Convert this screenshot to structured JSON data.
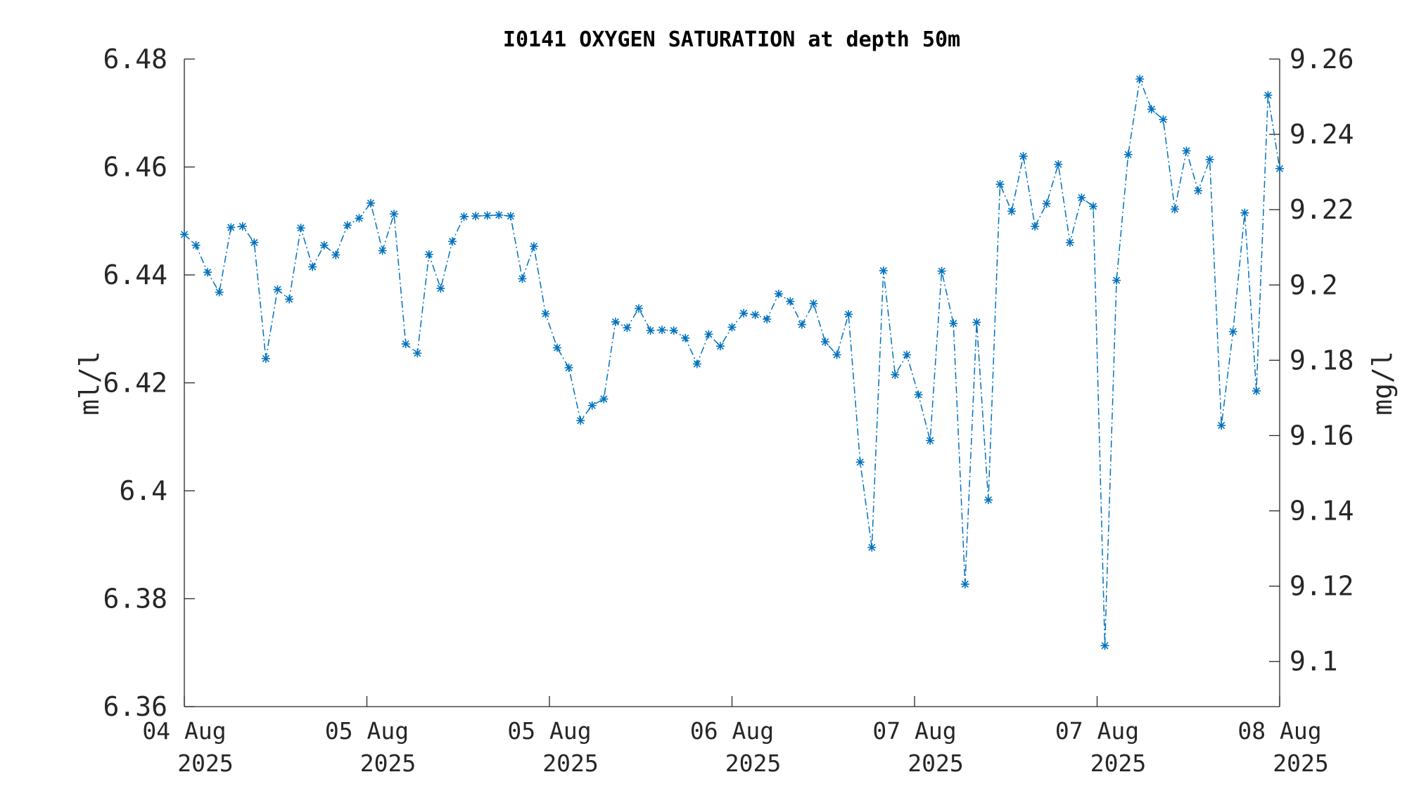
{
  "colors": {
    "series": "#0072BD",
    "axis": "#262626"
  },
  "chart_data": {
    "type": "line",
    "title": "I0141 OXYGEN SATURATION at depth 50m",
    "ylabel": "ml/l",
    "ylabel_right": "mg/l",
    "ylim": [
      6.36,
      6.48
    ],
    "ylim_right": [
      9.088,
      9.26
    ],
    "yticks": [
      "6.36",
      "6.38",
      "6.4",
      "6.42",
      "6.44",
      "6.46",
      "6.48"
    ],
    "yticks_right": [
      "9.1",
      "9.12",
      "9.14",
      "9.16",
      "9.18",
      "9.2",
      "9.22",
      "9.24",
      "9.26"
    ],
    "xticks": [
      {
        "line1": "04 Aug",
        "line2": "2025"
      },
      {
        "line1": "05 Aug",
        "line2": "2025"
      },
      {
        "line1": "05 Aug",
        "line2": "2025"
      },
      {
        "line1": "06 Aug",
        "line2": "2025"
      },
      {
        "line1": "07 Aug",
        "line2": "2025"
      },
      {
        "line1": "07 Aug",
        "line2": "2025"
      },
      {
        "line1": "08 Aug",
        "line2": "2025"
      }
    ],
    "marker": "asterisk",
    "line_style": "dash-dot",
    "grid": false,
    "series": [
      {
        "values": [
          6.4475,
          6.4455,
          6.4405,
          6.4368,
          6.4488,
          6.449,
          6.446,
          6.4245,
          6.4373,
          6.4355,
          6.4487,
          6.4415,
          6.4455,
          6.4437,
          6.4492,
          6.4505,
          6.4533,
          6.4445,
          6.4513,
          6.4272,
          6.4255,
          6.4438,
          6.4375,
          6.4462,
          6.4508,
          6.4509,
          6.451,
          6.4511,
          6.4509,
          6.4393,
          6.4453,
          6.4328,
          6.4265,
          6.4228,
          6.413,
          6.4158,
          6.417,
          6.4313,
          6.4302,
          6.4338,
          6.4297,
          6.4298,
          6.4297,
          6.4283,
          6.4235,
          6.429,
          6.4268,
          6.4303,
          6.4329,
          6.4326,
          6.4318,
          6.4365,
          6.4351,
          6.4308,
          6.4347,
          6.4276,
          6.4252,
          6.4327,
          6.4053,
          6.3895,
          6.4408,
          6.4215,
          6.4252,
          6.4178,
          6.4093,
          6.4407,
          6.431,
          6.3827,
          6.4312,
          6.3983,
          6.4568,
          6.4518,
          6.462,
          6.449,
          6.4532,
          6.4605,
          6.446,
          6.4543,
          6.4527,
          6.3713,
          6.439,
          6.4623,
          6.4763,
          6.4707,
          6.4688,
          6.4522,
          6.463,
          6.4556,
          6.4614,
          6.4121,
          6.4295,
          6.4515,
          6.4185,
          6.4733,
          6.4597
        ]
      }
    ]
  }
}
